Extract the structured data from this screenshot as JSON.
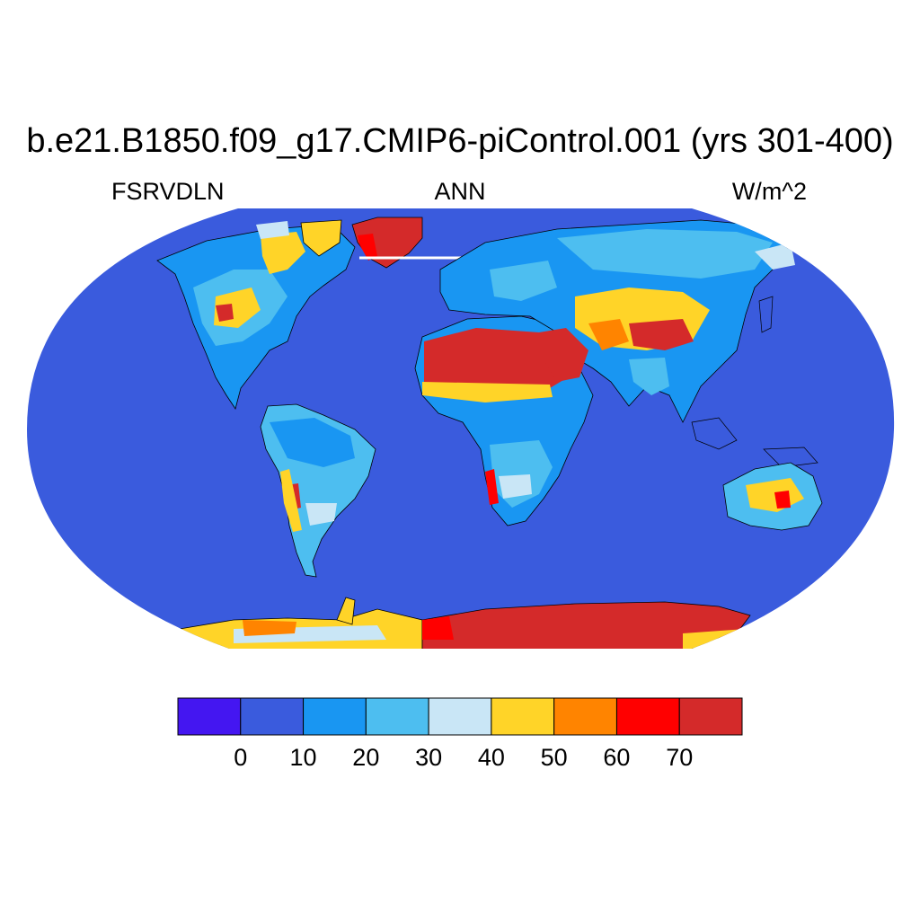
{
  "title": "b.e21.B1850.f09_g17.CMIP6-piControl.001 (yrs 301-400)",
  "left_label": "FSRVDLN",
  "center_label": "ANN",
  "right_label": "W/m^2",
  "colorbar": {
    "bins": [
      {
        "color": "#4416F1"
      },
      {
        "color": "#3A5BDD"
      },
      {
        "color": "#1996F2"
      },
      {
        "color": "#4DBEF0"
      },
      {
        "color": "#C9E6F6"
      },
      {
        "color": "#FFD428"
      },
      {
        "color": "#FF8400"
      },
      {
        "color": "#FF0000"
      },
      {
        "color": "#D42A2A"
      }
    ],
    "tick_labels": [
      "0",
      "10",
      "20",
      "30",
      "40",
      "50",
      "60",
      "70"
    ]
  },
  "map_colors": {
    "ocean": "#3A5BDD",
    "low": "#1996F2",
    "mid": "#4DBEF0",
    "pale": "#C9E6F6",
    "yellow": "#FFD428",
    "orange": "#FF8400",
    "red": "#FF0000",
    "darkred": "#D42A2A"
  }
}
